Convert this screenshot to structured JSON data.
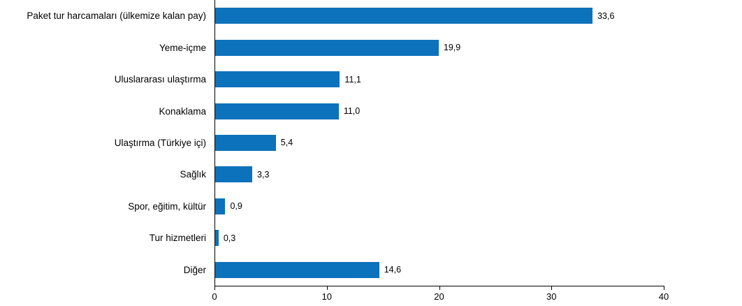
{
  "chart_data": {
    "type": "bar",
    "orientation": "horizontal",
    "title": "",
    "xlabel": "",
    "ylabel": "",
    "categories": [
      "Paket tur harcamaları (ülkemize kalan pay)",
      "Yeme-içme",
      "Uluslararası ulaştırma",
      "Konaklama",
      "Ulaştırma (Türkiye içi)",
      "Sağlık",
      "Spor, eğitim, kültür",
      "Tur hizmetleri",
      "Diğer"
    ],
    "values": [
      33.6,
      19.9,
      11.1,
      11.0,
      5.4,
      3.3,
      0.9,
      0.3,
      14.6
    ],
    "value_labels": [
      "33,6",
      "19,9",
      "11,1",
      "11,0",
      "5,4",
      "3,3",
      "0,9",
      "0,3",
      "14,6"
    ],
    "xlim": [
      0,
      40
    ],
    "xticks": [
      0,
      10,
      20,
      30,
      40
    ],
    "xtick_labels": [
      "0",
      "10",
      "20",
      "30",
      "40"
    ],
    "grid": false,
    "legend": false
  },
  "colors": {
    "bar": "#0D72BC",
    "axis": "#000000",
    "text": "#000000"
  }
}
